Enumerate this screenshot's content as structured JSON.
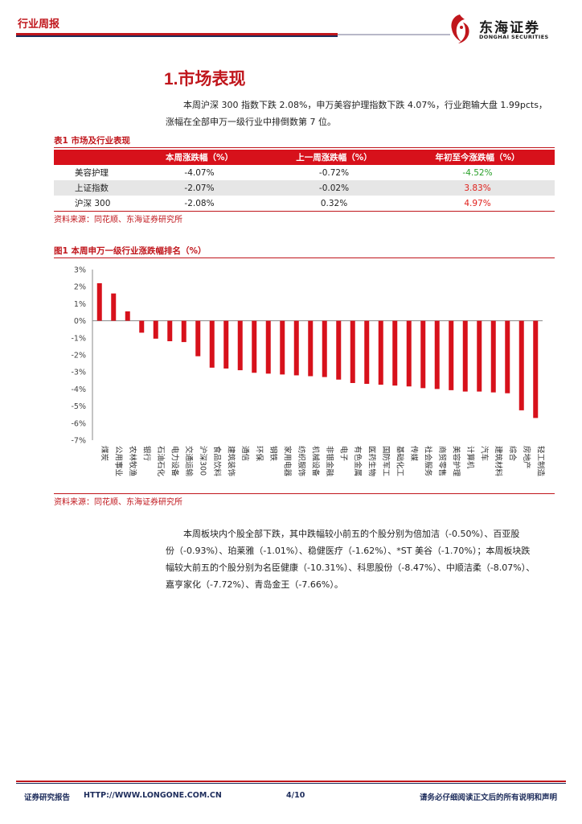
{
  "header": {
    "tag": "行业周报",
    "logo_cn": "东海证券",
    "logo_en": "DONGHAI SECURITIES"
  },
  "section_title": "1.市场表现",
  "para1": {
    "line1": "本周沪深 300 指数下跌 2.08%，申万美容护理指数下跌 4.07%，行业跑输大盘 1.99pcts，",
    "line2": "涨幅在全部申万一级行业中排倒数第 7 位。"
  },
  "table": {
    "caption": "表1  市场及行业表现",
    "headers": [
      "",
      "本周涨跌幅（%）",
      "上一周涨跌幅（%）",
      "年初至今涨跌幅（%）"
    ],
    "rows": [
      {
        "name": "美容护理",
        "week": "-4.07%",
        "prev": "-0.72%",
        "ytd": "-4.52%",
        "ytd_color": "#2aa02a"
      },
      {
        "name": "上证指数",
        "week": "-2.07%",
        "prev": "-0.02%",
        "ytd": "3.83%",
        "ytd_color": "#e0201c"
      },
      {
        "name": "沪深 300",
        "week": "-2.08%",
        "prev": "0.32%",
        "ytd": "4.97%",
        "ytd_color": "#e0201c"
      }
    ],
    "source": "资料来源：同花顺、东海证券研究所"
  },
  "figure": {
    "caption": "图1  本周申万一级行业涨跌幅排名（%）",
    "source": "资料来源：同花顺、东海证券研究所"
  },
  "chart_data": {
    "type": "bar",
    "title": "本周申万一级行业涨跌幅排名（%）",
    "categories": [
      "煤炭",
      "公用事业",
      "农林牧渔",
      "银行",
      "石油石化",
      "电力设备",
      "交通运输",
      "沪深300",
      "食品饮料",
      "建筑装饰",
      "通信",
      "环保",
      "钢铁",
      "家用电器",
      "纺织服饰",
      "机械设备",
      "非银金融",
      "电子",
      "有色金属",
      "医药生物",
      "国防军工",
      "基础化工",
      "传媒",
      "社会服务",
      "商贸零售",
      "美容护理",
      "计算机",
      "汽车",
      "建筑材料",
      "综合",
      "房地产",
      "轻工制造"
    ],
    "values": [
      2.2,
      1.6,
      0.55,
      -0.7,
      -1.05,
      -1.2,
      -1.25,
      -2.08,
      -2.75,
      -2.8,
      -2.9,
      -3.05,
      -3.1,
      -3.15,
      -3.2,
      -3.25,
      -3.3,
      -3.45,
      -3.65,
      -3.7,
      -3.75,
      -3.8,
      -3.85,
      -3.95,
      -4.0,
      -4.07,
      -4.15,
      -4.15,
      -4.2,
      -4.25,
      -5.25,
      -5.7
    ],
    "ylim": [
      -7,
      3
    ],
    "yticks": [
      "3%",
      "2%",
      "1%",
      "0%",
      "-1%",
      "-2%",
      "-3%",
      "-4%",
      "-5%",
      "-6%",
      "-7%"
    ],
    "bar_color": "#d7111b"
  },
  "para2": {
    "line1": "本周板块内个股全部下跌，其中跌幅较小前五的个股分别为倍加洁（-0.50%）、百亚股",
    "line2": "份（-0.93%）、珀莱雅（-1.01%）、稳健医疗（-1.62%）、*ST 美谷（-1.70%）；本周板块跌",
    "line3": "幅较大前五的个股分别为名臣健康（-10.31%）、科思股份（-8.47%）、中顺洁柔（-8.07%）、",
    "line4": "嘉亨家化（-7.72%）、青岛金王（-7.66%）。"
  },
  "footer": {
    "left": "证券研究报告",
    "url": "HTTP://WWW.LONGONE.COM.CN",
    "page": "4/10",
    "right": "请务必仔细阅读正文后的所有说明和声明"
  }
}
